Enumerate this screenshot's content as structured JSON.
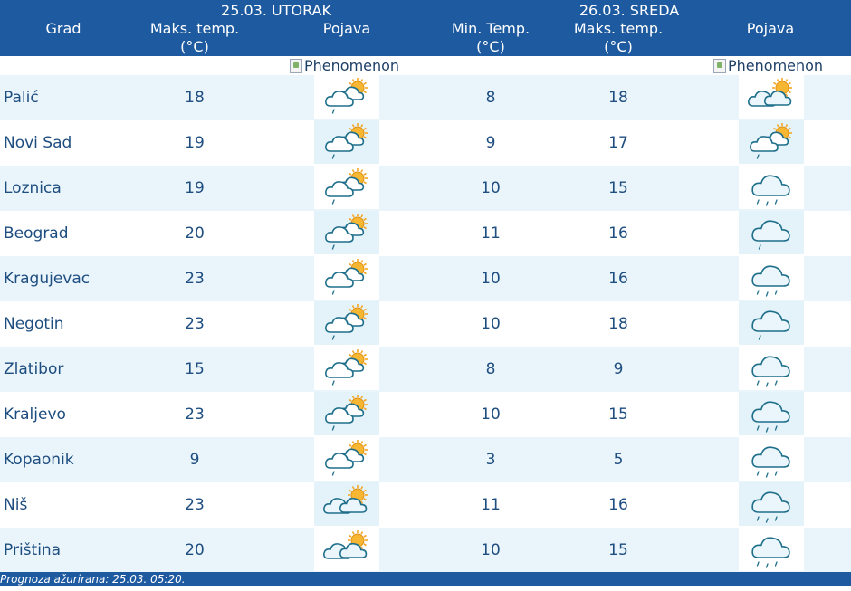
{
  "header": {
    "day1": "25.03. UTORAK",
    "day2": "26.03. SREDA",
    "col_city": "Grad",
    "col_max1": [
      "Maks. temp.",
      "(°C)"
    ],
    "col_icon1": "Pojava",
    "col_min": [
      "Min. Temp.",
      "(°C)"
    ],
    "col_max2": [
      "Maks. temp.",
      "(°C)"
    ],
    "col_icon2": "Pojava"
  },
  "alt_text": "Phenomenon",
  "rows": [
    {
      "city": "Palić",
      "max1": "18",
      "icon1": "partly-cloudy-light-rain-icon",
      "min": "8",
      "max2": "18",
      "icon2": "partly-cloudy-icon"
    },
    {
      "city": "Novi Sad",
      "max1": "19",
      "icon1": "partly-cloudy-light-rain-icon",
      "min": "9",
      "max2": "17",
      "icon2": "partly-cloudy-light-rain-icon"
    },
    {
      "city": "Loznica",
      "max1": "19",
      "icon1": "partly-cloudy-light-rain-icon",
      "min": "10",
      "max2": "15",
      "icon2": "rain-icon"
    },
    {
      "city": "Beograd",
      "max1": "20",
      "icon1": "partly-cloudy-light-rain-icon",
      "min": "11",
      "max2": "16",
      "icon2": "cloud-light-rain-icon"
    },
    {
      "city": "Kragujevac",
      "max1": "23",
      "icon1": "partly-cloudy-light-rain-icon",
      "min": "10",
      "max2": "16",
      "icon2": "rain-icon"
    },
    {
      "city": "Negotin",
      "max1": "23",
      "icon1": "partly-cloudy-light-rain-icon",
      "min": "10",
      "max2": "18",
      "icon2": "cloud-light-rain-icon"
    },
    {
      "city": "Zlatibor",
      "max1": "15",
      "icon1": "partly-cloudy-light-rain-icon",
      "min": "8",
      "max2": "9",
      "icon2": "rain-icon"
    },
    {
      "city": "Kraljevo",
      "max1": "23",
      "icon1": "partly-cloudy-light-rain-icon",
      "min": "10",
      "max2": "15",
      "icon2": "rain-icon"
    },
    {
      "city": "Kopaonik",
      "max1": "9",
      "icon1": "partly-cloudy-light-rain-icon",
      "min": "3",
      "max2": "5",
      "icon2": "rain-icon"
    },
    {
      "city": "Niš",
      "max1": "23",
      "icon1": "partly-cloudy-icon",
      "min": "11",
      "max2": "16",
      "icon2": "rain-icon"
    },
    {
      "city": "Priština",
      "max1": "20",
      "icon1": "partly-cloudy-icon",
      "min": "10",
      "max2": "15",
      "icon2": "rain-icon"
    }
  ],
  "footer": "Prognoza ažurirana:  25.03. 05:20.",
  "colors": {
    "header_bg": "#1e5aa0",
    "row_alt_bg": "#eaf5fb",
    "text": "#1e4d80",
    "sun": "#f5a623",
    "cloud_stroke": "#1f6f8b"
  }
}
